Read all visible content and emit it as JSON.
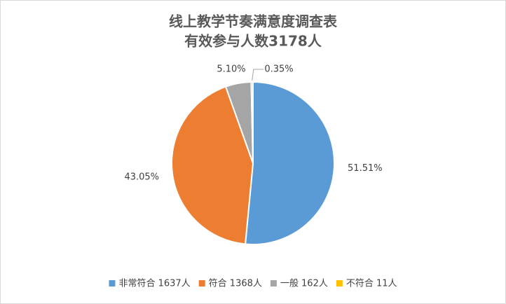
{
  "chart_data": {
    "type": "pie",
    "title": "线上教学节奏满意度调查表",
    "subtitle": "有效参与人数3178人",
    "categories": [
      "非常符合 1637人",
      "符合 1368人",
      "一般 162人",
      "不符合 11人"
    ],
    "values": [
      51.51,
      43.05,
      5.1,
      0.35
    ],
    "value_labels": [
      "51.51%",
      "43.05%",
      "5.10%",
      "0.35%"
    ],
    "colors": [
      "#5b9bd5",
      "#ed7d31",
      "#a5a5a5",
      "#ffc000"
    ],
    "legend": "bottom"
  }
}
